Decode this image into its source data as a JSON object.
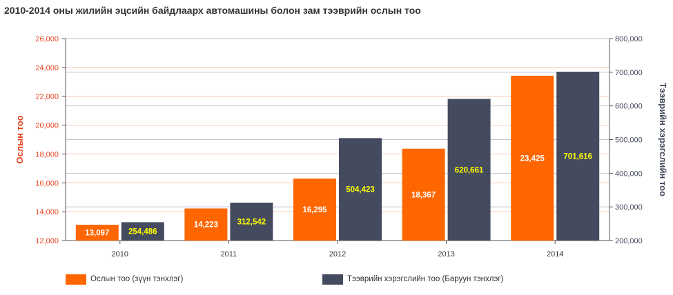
{
  "chart_data": {
    "type": "bar",
    "title": "2010-2014 оны жилийн эцсийн байдлаарх автомашины болон зам тээврийн ослын тоо",
    "categories": [
      "2010",
      "2011",
      "2012",
      "2013",
      "2014"
    ],
    "series": [
      {
        "name": "Ослын тоо (зүүн тэнхлэг)",
        "axis": "left",
        "color": "#ff6600",
        "values": [
          13097,
          14223,
          16295,
          18367,
          23425
        ],
        "labels": [
          "13,097",
          "14,223",
          "16,295",
          "18,367",
          "23,425"
        ]
      },
      {
        "name": "Тээврийн хэрэгслийн тоо (Баруун тэнхлэг)",
        "axis": "right",
        "color": "#454b5e",
        "values": [
          254486,
          312542,
          504423,
          620661,
          701616
        ],
        "labels": [
          "254,486",
          "312,542",
          "504,423",
          "620,661",
          "701,616"
        ]
      }
    ],
    "y_left": {
      "label": "Ослын тоо",
      "color": "#e8411c",
      "range": [
        12000,
        26000
      ],
      "ticks": [
        12000,
        14000,
        16000,
        18000,
        20000,
        22000,
        24000,
        26000
      ],
      "tick_labels": [
        "12,000",
        "14,000",
        "16,000",
        "18,000",
        "20,000",
        "22,000",
        "24,000",
        "26,000"
      ]
    },
    "y_right": {
      "label": "Тээврийн хэрэгслийн тоо",
      "color": "#454b5e",
      "range": [
        200000,
        800000
      ],
      "ticks": [
        200000,
        300000,
        400000,
        500000,
        600000,
        700000,
        800000
      ],
      "tick_labels": [
        "200,000",
        "300,000",
        "400,000",
        "500,000",
        "600,000",
        "700,000",
        "800,000"
      ]
    },
    "grid": true,
    "legend_position": "bottom",
    "label_colors": {
      "left_series": "#ffffff",
      "right_series": "#ffff00"
    }
  }
}
